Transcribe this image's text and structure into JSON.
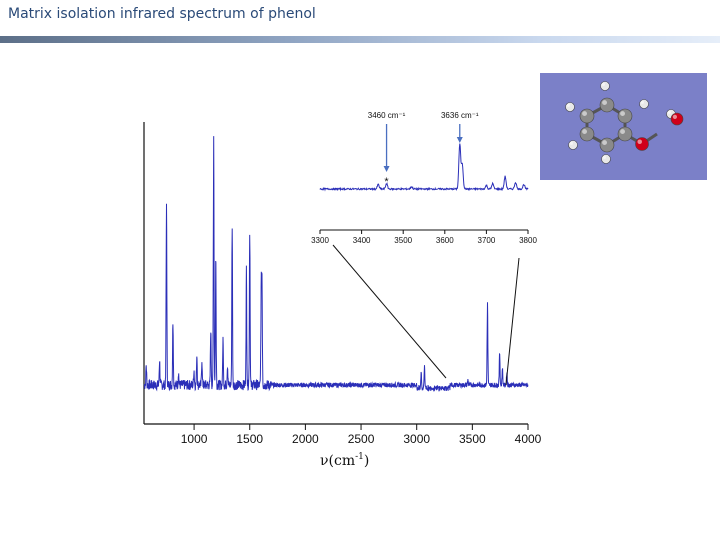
{
  "title": "Matrix isolation infrared spectrum of phenol",
  "chart_data": [
    {
      "type": "line",
      "xlabel_base": "ν",
      "xlabel_unit": "(cm",
      "xlabel_sup": "-1",
      "xlabel_close": ")",
      "xlim": [
        550,
        4000
      ],
      "xticks": [
        1000,
        1500,
        2000,
        2500,
        3000,
        3500,
        4000
      ],
      "xtick_labels": [
        "1000",
        "1500",
        "2000",
        "2500",
        "3000",
        "3500",
        "4000"
      ],
      "line_color": "#2b2fb8",
      "series": [
        {
          "peaks": [
            {
              "x": 570,
              "h": 0.08
            },
            {
              "x": 690,
              "h": 0.1
            },
            {
              "x": 752,
              "h": 0.72
            },
            {
              "x": 810,
              "h": 0.25
            },
            {
              "x": 860,
              "h": 0.05
            },
            {
              "x": 999,
              "h": 0.06
            },
            {
              "x": 1025,
              "h": 0.12
            },
            {
              "x": 1070,
              "h": 0.1
            },
            {
              "x": 1150,
              "h": 0.22
            },
            {
              "x": 1176,
              "h": 0.97
            },
            {
              "x": 1195,
              "h": 0.5
            },
            {
              "x": 1260,
              "h": 0.18
            },
            {
              "x": 1300,
              "h": 0.08
            },
            {
              "x": 1342,
              "h": 0.62
            },
            {
              "x": 1470,
              "h": 0.45
            },
            {
              "x": 1500,
              "h": 0.6
            },
            {
              "x": 1603,
              "h": 0.37
            },
            {
              "x": 1610,
              "h": 0.4
            },
            {
              "x": 3040,
              "h": 0.06
            },
            {
              "x": 3070,
              "h": 0.09
            },
            {
              "x": 3460,
              "h": 0.02
            },
            {
              "x": 3636,
              "h": 0.32
            },
            {
              "x": 3745,
              "h": 0.13
            },
            {
              "x": 3770,
              "h": 0.07
            },
            {
              "x": 3810,
              "h": 0.05
            }
          ]
        }
      ],
      "inset": {
        "xlim": [
          3300,
          3800
        ],
        "xticks": [
          3300,
          3400,
          3500,
          3600,
          3700,
          3800
        ],
        "xtick_labels": [
          "3300",
          "3400",
          "3500",
          "3600",
          "3700",
          "3800"
        ],
        "annotations": [
          {
            "x": 3460,
            "label": "3460 cm⁻¹"
          },
          {
            "x": 3636,
            "label": "3636 cm⁻¹"
          }
        ],
        "star_label": "*",
        "star_x": 3460,
        "peaks": [
          {
            "x": 3440,
            "h": 0.1
          },
          {
            "x": 3460,
            "h": 0.12
          },
          {
            "x": 3520,
            "h": 0.05
          },
          {
            "x": 3636,
            "h": 1.0
          },
          {
            "x": 3642,
            "h": 0.55
          },
          {
            "x": 3700,
            "h": 0.08
          },
          {
            "x": 3715,
            "h": 0.12
          },
          {
            "x": 3745,
            "h": 0.28
          },
          {
            "x": 3770,
            "h": 0.15
          },
          {
            "x": 3790,
            "h": 0.1
          }
        ]
      }
    }
  ],
  "molecule": {
    "background": "#7b80c8",
    "carbon_color": "#8a8a8a",
    "hydrogen_color": "#e8e8e8",
    "oxygen_color": "#d0001a"
  }
}
